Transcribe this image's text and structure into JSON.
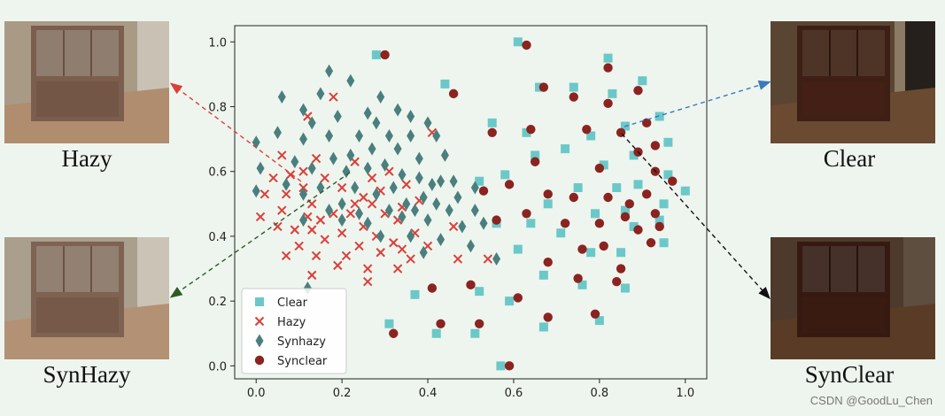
{
  "thumbnails": {
    "hazy": {
      "label": "Hazy",
      "tone": "#a99a86"
    },
    "synhazy": {
      "label": "SynHazy",
      "tone": "#a89c8a"
    },
    "clear": {
      "label": "Clear",
      "tone": "#4a3024"
    },
    "synclear": {
      "label": "SynClear",
      "tone": "#3c2a22"
    }
  },
  "watermark": "CSDN @GoodLu_Chen",
  "chart_data": {
    "type": "scatter",
    "xlim": [
      -0.05,
      1.05
    ],
    "ylim": [
      -0.04,
      1.05
    ],
    "xticks": [
      "0.0",
      "0.2",
      "0.4",
      "0.6",
      "0.8",
      "1.0"
    ],
    "yticks": [
      "0.0",
      "0.2",
      "0.4",
      "0.6",
      "0.8",
      "1.0"
    ],
    "grid": false,
    "legend_position": "lower-left",
    "series": [
      {
        "name": "Clear",
        "marker": "square",
        "color": "#6bc8c8",
        "points": [
          [
            0.28,
            0.96
          ],
          [
            0.44,
            0.87
          ],
          [
            0.61,
            1.0
          ],
          [
            0.66,
            0.86
          ],
          [
            0.74,
            0.86
          ],
          [
            0.82,
            0.95
          ],
          [
            0.83,
            0.84
          ],
          [
            0.9,
            0.88
          ],
          [
            0.94,
            0.77
          ],
          [
            0.86,
            0.74
          ],
          [
            0.96,
            0.69
          ],
          [
            0.55,
            0.75
          ],
          [
            0.63,
            0.72
          ],
          [
            0.72,
            0.67
          ],
          [
            0.78,
            0.71
          ],
          [
            0.65,
            0.65
          ],
          [
            0.81,
            0.62
          ],
          [
            0.88,
            0.65
          ],
          [
            0.58,
            0.59
          ],
          [
            0.52,
            0.57
          ],
          [
            0.75,
            0.55
          ],
          [
            0.84,
            0.55
          ],
          [
            0.89,
            0.56
          ],
          [
            0.96,
            0.59
          ],
          [
            1.0,
            0.54
          ],
          [
            0.68,
            0.5
          ],
          [
            0.95,
            0.5
          ],
          [
            0.56,
            0.44
          ],
          [
            0.64,
            0.44
          ],
          [
            0.79,
            0.47
          ],
          [
            0.86,
            0.48
          ],
          [
            0.88,
            0.43
          ],
          [
            0.94,
            0.45
          ],
          [
            0.71,
            0.41
          ],
          [
            0.61,
            0.36
          ],
          [
            0.78,
            0.35
          ],
          [
            0.85,
            0.35
          ],
          [
            0.95,
            0.38
          ],
          [
            0.67,
            0.28
          ],
          [
            0.76,
            0.25
          ],
          [
            0.86,
            0.24
          ],
          [
            0.37,
            0.22
          ],
          [
            0.52,
            0.23
          ],
          [
            0.59,
            0.2
          ],
          [
            0.31,
            0.13
          ],
          [
            0.42,
            0.1
          ],
          [
            0.51,
            0.1
          ],
          [
            0.67,
            0.12
          ],
          [
            0.8,
            0.14
          ],
          [
            0.57,
            0.0
          ]
        ]
      },
      {
        "name": "Hazy",
        "marker": "x",
        "color": "#d9403a",
        "points": [
          [
            0.18,
            0.83
          ],
          [
            0.12,
            0.77
          ],
          [
            0.41,
            0.72
          ],
          [
            0.06,
            0.65
          ],
          [
            0.14,
            0.64
          ],
          [
            0.23,
            0.63
          ],
          [
            0.11,
            0.6
          ],
          [
            0.31,
            0.6
          ],
          [
            0.35,
            0.56
          ],
          [
            0.04,
            0.58
          ],
          [
            0.08,
            0.59
          ],
          [
            0.16,
            0.58
          ],
          [
            0.27,
            0.58
          ],
          [
            0.02,
            0.53
          ],
          [
            0.07,
            0.53
          ],
          [
            0.11,
            0.55
          ],
          [
            0.2,
            0.55
          ],
          [
            0.25,
            0.52
          ],
          [
            0.29,
            0.54
          ],
          [
            0.38,
            0.51
          ],
          [
            0.13,
            0.5
          ],
          [
            0.23,
            0.5
          ],
          [
            0.27,
            0.5
          ],
          [
            0.34,
            0.49
          ],
          [
            0.06,
            0.48
          ],
          [
            0.18,
            0.47
          ],
          [
            0.22,
            0.47
          ],
          [
            0.3,
            0.47
          ],
          [
            0.01,
            0.46
          ],
          [
            0.12,
            0.46
          ],
          [
            0.15,
            0.45
          ],
          [
            0.33,
            0.45
          ],
          [
            0.25,
            0.43
          ],
          [
            0.05,
            0.43
          ],
          [
            0.09,
            0.42
          ],
          [
            0.13,
            0.42
          ],
          [
            0.37,
            0.41
          ],
          [
            0.46,
            0.43
          ],
          [
            0.2,
            0.41
          ],
          [
            0.28,
            0.4
          ],
          [
            0.16,
            0.39
          ],
          [
            0.32,
            0.38
          ],
          [
            0.1,
            0.37
          ],
          [
            0.24,
            0.37
          ],
          [
            0.34,
            0.36
          ],
          [
            0.4,
            0.37
          ],
          [
            0.29,
            0.35
          ],
          [
            0.07,
            0.34
          ],
          [
            0.14,
            0.34
          ],
          [
            0.21,
            0.34
          ],
          [
            0.36,
            0.33
          ],
          [
            0.47,
            0.33
          ],
          [
            0.54,
            0.33
          ],
          [
            0.19,
            0.31
          ],
          [
            0.26,
            0.3
          ],
          [
            0.33,
            0.3
          ],
          [
            0.13,
            0.28
          ],
          [
            0.26,
            0.26
          ]
        ]
      },
      {
        "name": "Synhazy",
        "marker": "diamond",
        "color": "#4a7f7e",
        "points": [
          [
            0.17,
            0.91
          ],
          [
            0.22,
            0.88
          ],
          [
            0.06,
            0.83
          ],
          [
            0.15,
            0.84
          ],
          [
            0.29,
            0.83
          ],
          [
            0.11,
            0.79
          ],
          [
            0.19,
            0.77
          ],
          [
            0.26,
            0.78
          ],
          [
            0.33,
            0.79
          ],
          [
            0.13,
            0.75
          ],
          [
            0.28,
            0.75
          ],
          [
            0.36,
            0.77
          ],
          [
            0.4,
            0.75
          ],
          [
            0.05,
            0.72
          ],
          [
            0.17,
            0.71
          ],
          [
            0.24,
            0.71
          ],
          [
            0.31,
            0.71
          ],
          [
            0.36,
            0.71
          ],
          [
            0.42,
            0.71
          ],
          [
            0.0,
            0.69
          ],
          [
            0.11,
            0.7
          ],
          [
            0.27,
            0.67
          ],
          [
            0.33,
            0.67
          ],
          [
            0.22,
            0.65
          ],
          [
            0.38,
            0.64
          ],
          [
            0.44,
            0.65
          ],
          [
            0.09,
            0.63
          ],
          [
            0.18,
            0.64
          ],
          [
            0.3,
            0.62
          ],
          [
            0.01,
            0.61
          ],
          [
            0.13,
            0.61
          ],
          [
            0.26,
            0.61
          ],
          [
            0.34,
            0.59
          ],
          [
            0.21,
            0.6
          ],
          [
            0.43,
            0.57
          ],
          [
            0.38,
            0.58
          ],
          [
            0.46,
            0.57
          ],
          [
            0.07,
            0.56
          ],
          [
            0.15,
            0.55
          ],
          [
            0.23,
            0.55
          ],
          [
            0.32,
            0.55
          ],
          [
            0.41,
            0.56
          ],
          [
            0.51,
            0.55
          ],
          [
            0.0,
            0.54
          ],
          [
            0.11,
            0.53
          ],
          [
            0.28,
            0.53
          ],
          [
            0.39,
            0.52
          ],
          [
            0.47,
            0.52
          ],
          [
            0.2,
            0.5
          ],
          [
            0.35,
            0.5
          ],
          [
            0.42,
            0.5
          ],
          [
            0.17,
            0.48
          ],
          [
            0.24,
            0.47
          ],
          [
            0.31,
            0.48
          ],
          [
            0.37,
            0.48
          ],
          [
            0.45,
            0.48
          ],
          [
            0.51,
            0.48
          ],
          [
            0.11,
            0.45
          ],
          [
            0.2,
            0.45
          ],
          [
            0.26,
            0.44
          ],
          [
            0.34,
            0.46
          ],
          [
            0.4,
            0.45
          ],
          [
            0.48,
            0.43
          ],
          [
            0.53,
            0.44
          ],
          [
            0.29,
            0.4
          ],
          [
            0.36,
            0.4
          ],
          [
            0.43,
            0.39
          ],
          [
            0.5,
            0.37
          ],
          [
            0.39,
            0.35
          ],
          [
            0.56,
            0.33
          ],
          [
            0.12,
            0.24
          ]
        ]
      },
      {
        "name": "Synclear",
        "marker": "circle",
        "color": "#8b2320",
        "points": [
          [
            0.3,
            0.96
          ],
          [
            0.63,
            0.99
          ],
          [
            0.82,
            0.92
          ],
          [
            0.67,
            0.86
          ],
          [
            0.46,
            0.84
          ],
          [
            0.74,
            0.83
          ],
          [
            0.89,
            0.85
          ],
          [
            0.82,
            0.81
          ],
          [
            0.91,
            0.75
          ],
          [
            0.64,
            0.73
          ],
          [
            0.55,
            0.72
          ],
          [
            0.77,
            0.73
          ],
          [
            0.85,
            0.72
          ],
          [
            0.93,
            0.68
          ],
          [
            0.89,
            0.66
          ],
          [
            0.65,
            0.63
          ],
          [
            0.8,
            0.61
          ],
          [
            0.93,
            0.6
          ],
          [
            0.53,
            0.54
          ],
          [
            0.59,
            0.56
          ],
          [
            0.68,
            0.53
          ],
          [
            0.74,
            0.52
          ],
          [
            0.82,
            0.52
          ],
          [
            0.91,
            0.53
          ],
          [
            0.97,
            0.57
          ],
          [
            0.87,
            0.5
          ],
          [
            0.93,
            0.47
          ],
          [
            0.56,
            0.45
          ],
          [
            0.63,
            0.47
          ],
          [
            0.72,
            0.44
          ],
          [
            0.8,
            0.44
          ],
          [
            0.86,
            0.46
          ],
          [
            0.89,
            0.42
          ],
          [
            0.94,
            0.43
          ],
          [
            0.76,
            0.36
          ],
          [
            0.81,
            0.37
          ],
          [
            0.92,
            0.38
          ],
          [
            0.68,
            0.32
          ],
          [
            0.85,
            0.3
          ],
          [
            0.75,
            0.27
          ],
          [
            0.84,
            0.26
          ],
          [
            0.41,
            0.24
          ],
          [
            0.5,
            0.25
          ],
          [
            0.61,
            0.21
          ],
          [
            0.68,
            0.15
          ],
          [
            0.79,
            0.16
          ],
          [
            0.43,
            0.13
          ],
          [
            0.52,
            0.13
          ],
          [
            0.32,
            0.1
          ],
          [
            0.59,
            0.0
          ]
        ]
      }
    ]
  }
}
